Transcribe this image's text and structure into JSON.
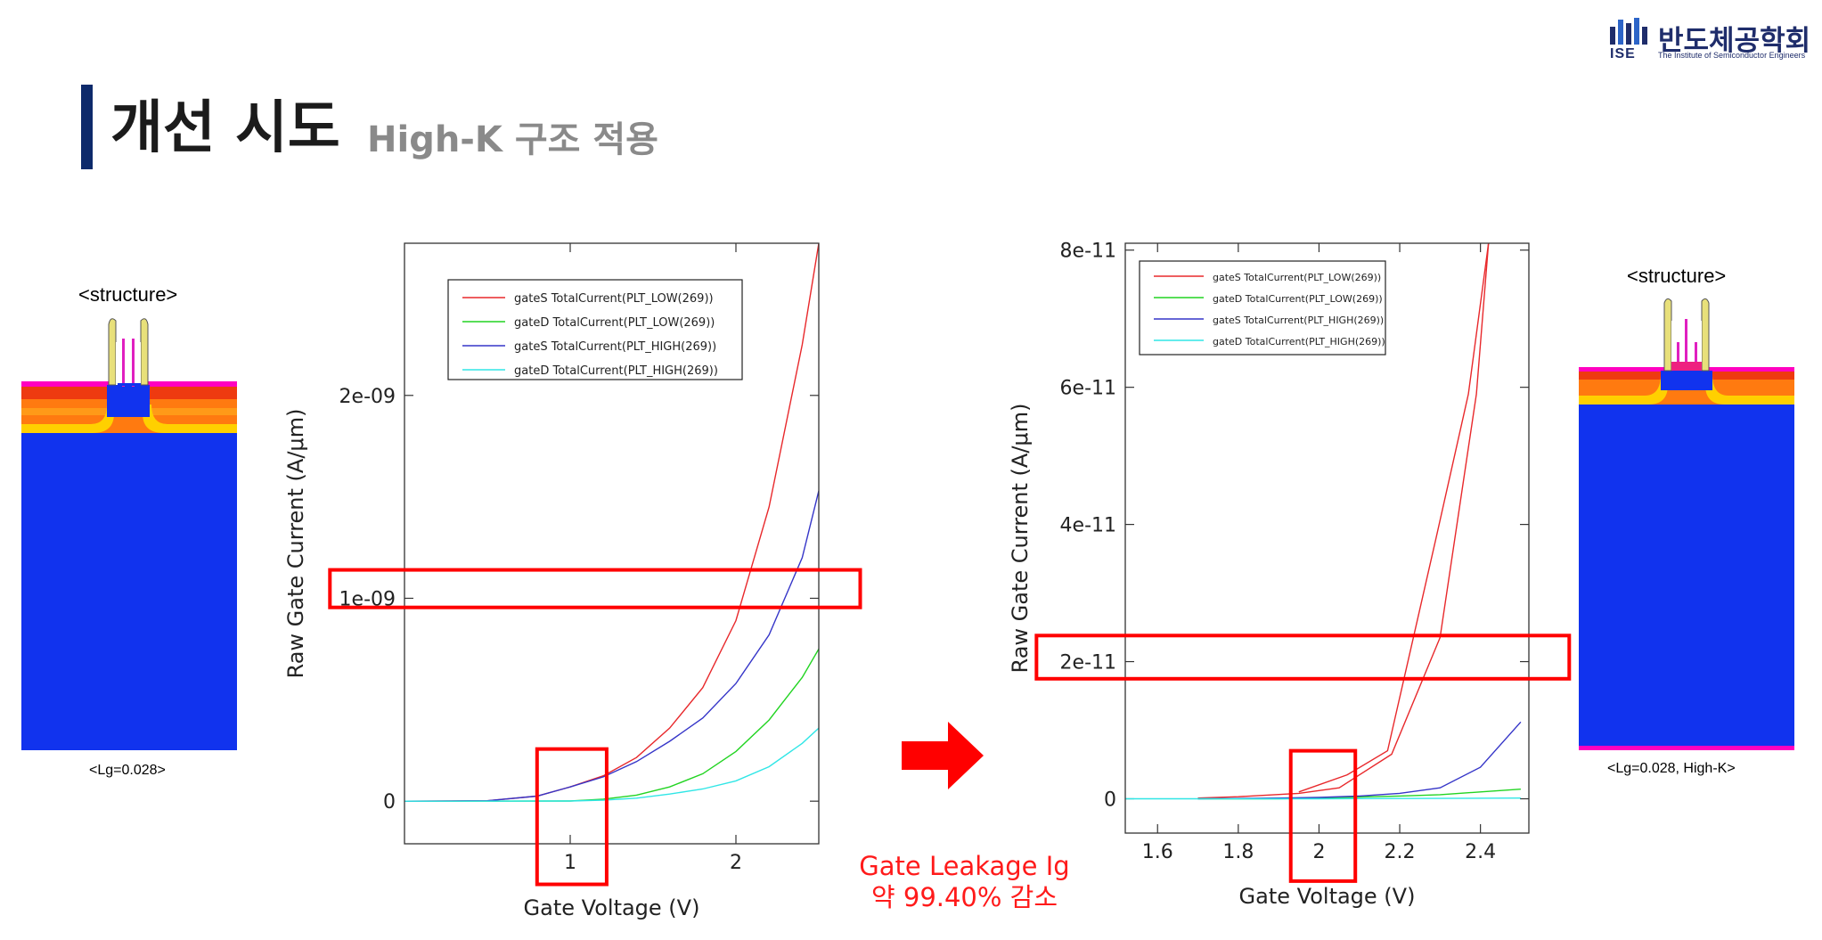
{
  "slide": {
    "title": "개선 시도",
    "subtitle": "High-K 구조 적용",
    "caption_line1": "Gate Leakage Ig",
    "caption_line2": "약 99.40% 감소"
  },
  "logo": {
    "name": "반도체공학회",
    "abbr": "ISE",
    "full_name": "The Institute of Semiconductor Engineers"
  },
  "left_structure": {
    "title": "<structure>",
    "label": "<Lg=0.028>"
  },
  "right_structure": {
    "title": "<structure>",
    "label": "<Lg=0.028, High-K>"
  },
  "colors": {
    "red": "#e8282b",
    "green": "#22d422",
    "blue": "#3535c8",
    "cyan": "#30e6e6",
    "highlight": "#ff0000",
    "substrate": "#1133ee",
    "title_bar": "#0d2a6b"
  },
  "chart_data": [
    {
      "type": "line",
      "title": "",
      "xlabel": "Gate Voltage (V)",
      "ylabel": "Raw Gate Current (A/μm)",
      "xlim": [
        0,
        2.5
      ],
      "ylim": [
        -2.1e-10,
        2.75e-09
      ],
      "xticks": [
        {
          "v": 1,
          "label": "1"
        },
        {
          "v": 2,
          "label": "2"
        }
      ],
      "yticks": [
        {
          "v": 0,
          "label": "0"
        },
        {
          "v": 1e-09,
          "label": "1e-09"
        },
        {
          "v": 2e-09,
          "label": "2e-09"
        }
      ],
      "legend_position": "top-right",
      "series": [
        {
          "name": "gateS TotalCurrent(PLT_LOW(269))",
          "color": "#e8282b",
          "x": [
            0,
            0.5,
            0.8,
            1.0,
            1.2,
            1.4,
            1.6,
            1.8,
            2.0,
            2.2,
            2.4,
            2.5
          ],
          "y": [
            0,
            2e-12,
            2.5e-11,
            7e-11,
            1.25e-10,
            2.15e-10,
            3.6e-10,
            5.6e-10,
            8.9e-10,
            1.45e-09,
            2.25e-09,
            2.75e-09
          ]
        },
        {
          "name": "gateD TotalCurrent(PLT_LOW(269))",
          "color": "#22d422",
          "x": [
            0,
            1.0,
            1.2,
            1.4,
            1.6,
            1.8,
            2.0,
            2.2,
            2.4,
            2.5
          ],
          "y": [
            0,
            1e-12,
            1e-11,
            3e-11,
            7e-11,
            1.35e-10,
            2.45e-10,
            4e-10,
            6.1e-10,
            7.5e-10
          ]
        },
        {
          "name": "gateS TotalCurrent(PLT_HIGH(269))",
          "color": "#3535c8",
          "x": [
            0,
            0.5,
            0.8,
            1.0,
            1.2,
            1.4,
            1.6,
            1.8,
            2.0,
            2.2,
            2.4,
            2.5
          ],
          "y": [
            0,
            2e-12,
            2.5e-11,
            7e-11,
            1.2e-10,
            1.95e-10,
            2.95e-10,
            4.1e-10,
            5.8e-10,
            8.2e-10,
            1.2e-09,
            1.53e-09
          ]
        },
        {
          "name": "gateD TotalCurrent(PLT_HIGH(269))",
          "color": "#30e6e6",
          "x": [
            0,
            1.0,
            1.2,
            1.4,
            1.6,
            1.8,
            2.0,
            2.2,
            2.4,
            2.5
          ],
          "y": [
            0,
            1e-12,
            5e-12,
            1.5e-11,
            3.5e-11,
            6e-11,
            1e-10,
            1.7e-10,
            2.85e-10,
            3.6e-10
          ]
        }
      ],
      "highlights": [
        {
          "x": [
            -0.45,
            2.75
          ],
          "y": [
            9.55e-10,
            1.14e-09
          ]
        },
        {
          "x": [
            0.8,
            1.22
          ],
          "y": [
            -4.1e-10,
            2.57e-10
          ]
        }
      ]
    },
    {
      "type": "line",
      "title": "",
      "xlabel": "Gate Voltage (V)",
      "ylabel": "Raw Gate Current (A/μm)",
      "xlim": [
        1.52,
        2.52
      ],
      "ylim": [
        -5e-12,
        8.1e-11
      ],
      "xticks": [
        {
          "v": 1.6,
          "label": "1.6"
        },
        {
          "v": 1.8,
          "label": "1.8"
        },
        {
          "v": 2.0,
          "label": "2"
        },
        {
          "v": 2.2,
          "label": "2.2"
        },
        {
          "v": 2.4,
          "label": "2.4"
        }
      ],
      "yticks": [
        {
          "v": 0,
          "label": "0"
        },
        {
          "v": 2e-11,
          "label": "2e-11"
        },
        {
          "v": 4e-11,
          "label": "4e-11"
        },
        {
          "v": 6e-11,
          "label": "6e-11"
        },
        {
          "v": 8e-11,
          "label": "8e-11"
        }
      ],
      "legend_position": "top-left",
      "series": [
        {
          "name": "gateS TotalCurrent(PLT_LOW(269))",
          "color": "#e8282b",
          "x": [
            1.7,
            1.8,
            1.95,
            2.05,
            2.18,
            2.3,
            2.39,
            2.42
          ],
          "y": [
            1e-13,
            3e-13,
            8e-13,
            1.6e-12,
            6.5e-12,
            2.35e-11,
            5.9e-11,
            8.1e-11
          ]
        },
        {
          "name": "gateD TotalCurrent(PLT_LOW(269))",
          "color": "#22d422",
          "x": [
            1.7,
            1.9,
            2.0,
            2.2,
            2.3,
            2.4,
            2.5
          ],
          "y": [
            0,
            0,
            1e-13,
            4e-13,
            6e-13,
            1e-12,
            1.4e-12
          ]
        },
        {
          "name": "gateS TotalCurrent(PLT_HIGH(269))",
          "color": "#3535c8",
          "x": [
            1.7,
            1.9,
            2.0,
            2.1,
            2.2,
            2.3,
            2.4,
            2.5
          ],
          "y": [
            0,
            1e-13,
            2e-13,
            4e-13,
            8e-13,
            1.6e-12,
            4.6e-12,
            1.12e-11
          ]
        },
        {
          "name": "gateD TotalCurrent(PLT_HIGH(269))",
          "color": "#30e6e6",
          "x": [
            1.52,
            2.0,
            2.5
          ],
          "y": [
            0,
            0,
            1e-13
          ]
        }
      ],
      "red_upper_branch": {
        "x": [
          1.95,
          2.07,
          2.17,
          2.29,
          2.37,
          2.42
        ],
        "y": [
          1e-12,
          3.5e-12,
          7e-12,
          3.8e-11,
          5.9e-11,
          8.1e-11
        ]
      },
      "highlights": [
        {
          "x": [
            1.3,
            2.62
          ],
          "y": [
            1.75e-11,
            2.38e-11
          ]
        },
        {
          "x": [
            1.93,
            2.09
          ],
          "y": [
            -1.2e-11,
            7e-12
          ]
        }
      ]
    }
  ]
}
